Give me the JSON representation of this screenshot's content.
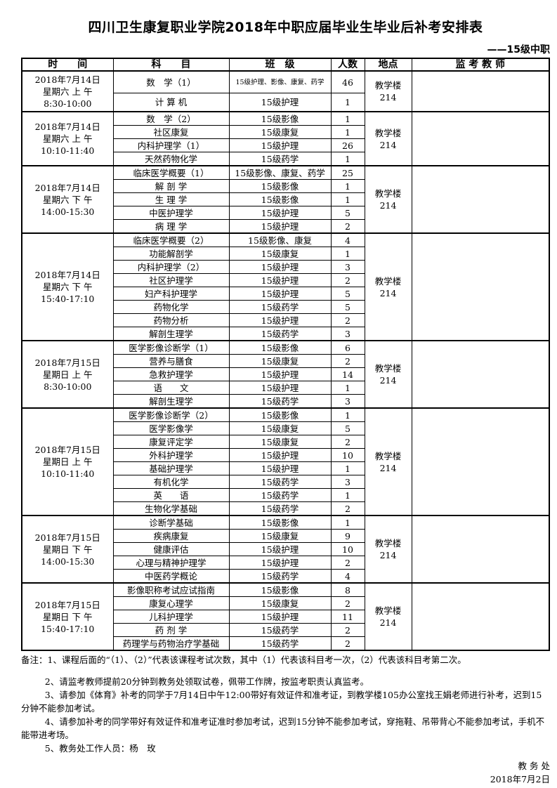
{
  "title": "四川卫生康复职业学院2018年中职应届毕业生毕业后补考安排表",
  "subtitle": "——15级中职",
  "headers": {
    "time": "时　　间",
    "subject": "科　　目",
    "class": "班　级",
    "count": "人数",
    "location": "地点",
    "invigilator": "监 考 教 师"
  },
  "groups": [
    {
      "date": "2018年7月14日",
      "day": "星期六 上 午",
      "period": "8:30-10:00",
      "location": "教学楼214",
      "rows": [
        [
          "数　学（1）",
          "15级护理、影像、康复、药学",
          "46"
        ],
        [
          "计 算 机",
          "15级护理",
          "1"
        ]
      ]
    },
    {
      "date": "2018年7月14日",
      "day": "星期六 上 午",
      "period": "10:10-11:40",
      "location": "教学楼214",
      "rows": [
        [
          "数　学（2）",
          "15级影像",
          "1"
        ],
        [
          "社区康复",
          "15级康复",
          "1"
        ],
        [
          "内科护理学（1）",
          "15级护理",
          "26"
        ],
        [
          "天然药物化学",
          "15级药学",
          "1"
        ]
      ]
    },
    {
      "date": "2018年7月14日",
      "day": "星期六 下 午",
      "period": "14:00-15:30",
      "location": "教学楼214",
      "rows": [
        [
          "临床医学概要（1）",
          "15级影像、康复、药学",
          "25"
        ],
        [
          "解 剖 学",
          "15级影像",
          "1"
        ],
        [
          "生 理 学",
          "15级影像",
          "1"
        ],
        [
          "中医护理学",
          "15级护理",
          "5"
        ],
        [
          "病 理 学",
          "15级护理",
          "2"
        ]
      ]
    },
    {
      "date": "2018年7月14日",
      "day": "星期六 下 午",
      "period": "15:40-17:10",
      "location": "教学楼214",
      "rows": [
        [
          "临床医学概要（2）",
          "15级影像、康复",
          "4"
        ],
        [
          "功能解剖学",
          "15级康复",
          "1"
        ],
        [
          "内科护理学（2）",
          "15级护理",
          "3"
        ],
        [
          "社区护理学",
          "15级护理",
          "2"
        ],
        [
          "妇产科护理学",
          "15级护理",
          "5"
        ],
        [
          "药物化学",
          "15级药学",
          "5"
        ],
        [
          "药物分析",
          "15级护理",
          "2"
        ],
        [
          "解剖生理学",
          "15级药学",
          "3"
        ]
      ]
    },
    {
      "date": "2018年7月15日",
      "day": "星期日 上 午",
      "period": "8:30-10:00",
      "location": "教学楼214",
      "rows": [
        [
          "医学影像诊断学（1）",
          "15级影像",
          "6"
        ],
        [
          "营养与膳食",
          "15级康复",
          "2"
        ],
        [
          "急救护理学",
          "15级护理",
          "14"
        ],
        [
          "语　　文",
          "15级护理",
          "1"
        ],
        [
          "解剖生理学",
          "15级药学",
          "3"
        ]
      ]
    },
    {
      "date": "2018年7月15日",
      "day": "星期日 上 午",
      "period": "10:10-11:40",
      "location": "教学楼214",
      "rows": [
        [
          "医学影像诊断学（2）",
          "15级影像",
          "1"
        ],
        [
          "医学影像学",
          "15级康复",
          "5"
        ],
        [
          "康复评定学",
          "15级康复",
          "2"
        ],
        [
          "外科护理学",
          "15级护理",
          "10"
        ],
        [
          "基础护理学",
          "15级护理",
          "1"
        ],
        [
          "有机化学",
          "15级药学",
          "3"
        ],
        [
          "英　　语",
          "15级药学",
          "1"
        ],
        [
          "生物化学基础",
          "15级药学",
          "2"
        ]
      ]
    },
    {
      "date": "2018年7月15日",
      "day": "星期日 下 午",
      "period": "14:00-15:30",
      "location": "教学楼214",
      "rows": [
        [
          "诊断学基础",
          "15级影像",
          "1"
        ],
        [
          "疾病康复",
          "15级康复",
          "9"
        ],
        [
          "健康评估",
          "15级护理",
          "10"
        ],
        [
          "心理与精神护理学",
          "15级护理",
          "2"
        ],
        [
          "中医药学概论",
          "15级药学",
          "4"
        ]
      ]
    },
    {
      "date": "2018年7月15日",
      "day": "星期日 下 午",
      "period": "15:40-17:10",
      "location": "教学楼214",
      "rows": [
        [
          "影像职称考试应试指南",
          "15级影像",
          "8"
        ],
        [
          "康复心理学",
          "15级康复",
          "2"
        ],
        [
          "儿科护理学",
          "15级护理",
          "11"
        ],
        [
          "药 剂 学",
          "15级药学",
          "2"
        ],
        [
          "药理学与药物治疗学基础",
          "15级药学",
          "2"
        ]
      ]
    }
  ],
  "notes": [
    "备注：1、课程后面的“（1）、（2）”代表该课程考试次数，其中（1）代表该科目考一次，（2）代表该科目考第二次。",
    "2、请监考教师提前20分钟到教务处领取试卷，佩带工作牌，按监考职责认真监考。",
    "3、请参加《体育》补考的同学于7月14日中午12:00带好有效证件和准考证，到教学楼105办公室找王娟老师进行补考，迟到15分钟不能参加考试。",
    "4、请参加补考的同学带好有效证件和准考证准时参加考试，迟到15分钟不能参加考试，穿拖鞋、吊带背心不能参加考试，手机不能带进考场。",
    "5、教务处工作人员：杨　玫"
  ],
  "signature": {
    "office": "教 务 处",
    "date": "2018年7月2日"
  }
}
